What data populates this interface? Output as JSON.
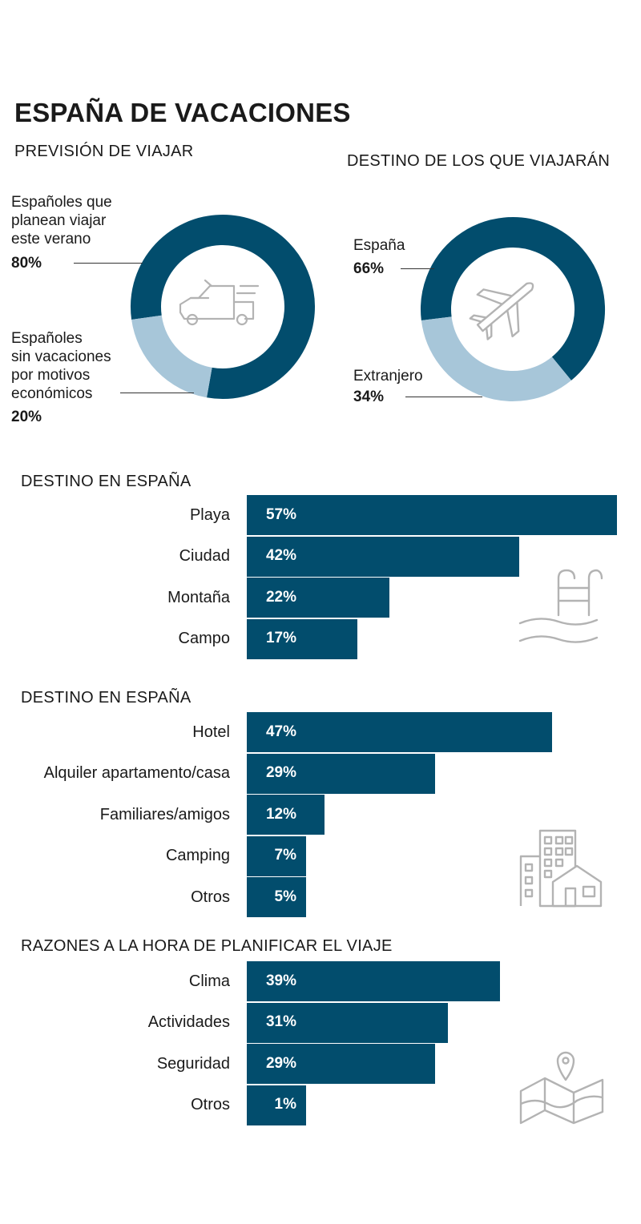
{
  "title": "ESPAÑA DE VACACIONES",
  "colors": {
    "dark": "#024d6d",
    "light": "#a7c6d9",
    "icon": "#b3b3b3"
  },
  "chart_data": [
    {
      "type": "pie",
      "title": "PREVISIÓN DE VIAJAR",
      "icon": "truck-icon",
      "slices": [
        {
          "label": "Españoles que\nplanean viajar\neste verano",
          "value": 80,
          "pct": "80%"
        },
        {
          "label": "Españoles\nsin vacaciones\npor motivos\neconómicos",
          "value": 20,
          "pct": "20%"
        }
      ]
    },
    {
      "type": "pie",
      "title": "DESTINO DE LOS QUE VIAJARÁN",
      "icon": "airplane-icon",
      "slices": [
        {
          "label": "España",
          "value": 66,
          "pct": "66%"
        },
        {
          "label": "Extranjero",
          "value": 34,
          "pct": "34%"
        }
      ]
    },
    {
      "type": "bar",
      "title": "DESTINO EN ESPAÑA",
      "icon": "pool-ladder-icon",
      "categories": [
        "Playa",
        "Ciudad",
        "Montaña",
        "Campo"
      ],
      "values": [
        57,
        42,
        22,
        17
      ],
      "value_labels": [
        "57%",
        "42%",
        "22%",
        "17%"
      ]
    },
    {
      "type": "bar",
      "title": "DESTINO EN ESPAÑA",
      "icon": "buildings-house-icon",
      "categories": [
        "Hotel",
        "Alquiler apartamento/casa",
        "Familiares/amigos",
        "Camping",
        "Otros"
      ],
      "values": [
        47,
        29,
        12,
        7,
        5
      ],
      "value_labels": [
        "47%",
        "29%",
        "12%",
        "7%",
        "5%"
      ]
    },
    {
      "type": "bar",
      "title": "RAZONES A LA HORA DE PLANIFICAR EL VIAJE",
      "icon": "map-pin-icon",
      "categories": [
        "Clima",
        "Actividades",
        "Seguridad",
        "Otros"
      ],
      "values": [
        39,
        31,
        29,
        1
      ],
      "value_labels": [
        "39%",
        "31%",
        "29%",
        "1%"
      ]
    }
  ]
}
